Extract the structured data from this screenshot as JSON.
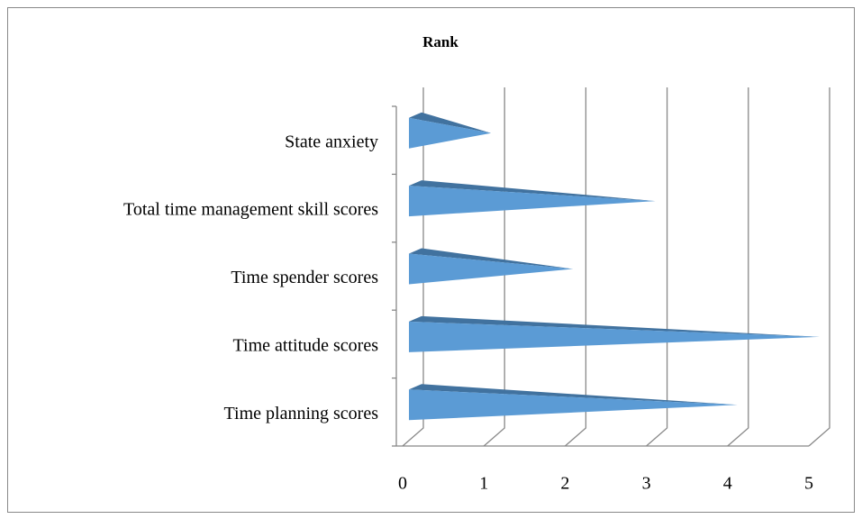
{
  "chart_data": {
    "type": "bar",
    "orientation": "horizontal",
    "title": "Rank",
    "categories": [
      "State anxiety",
      "Total time management skill scores",
      "Time spender scores",
      "Time attitude scores",
      "Time planning scores"
    ],
    "values": [
      1,
      3,
      2,
      5,
      4
    ],
    "color": "#5b9bd5",
    "xlim": [
      0,
      5
    ],
    "xticks": [
      0,
      1,
      2,
      3,
      4,
      5
    ],
    "grid": true
  }
}
